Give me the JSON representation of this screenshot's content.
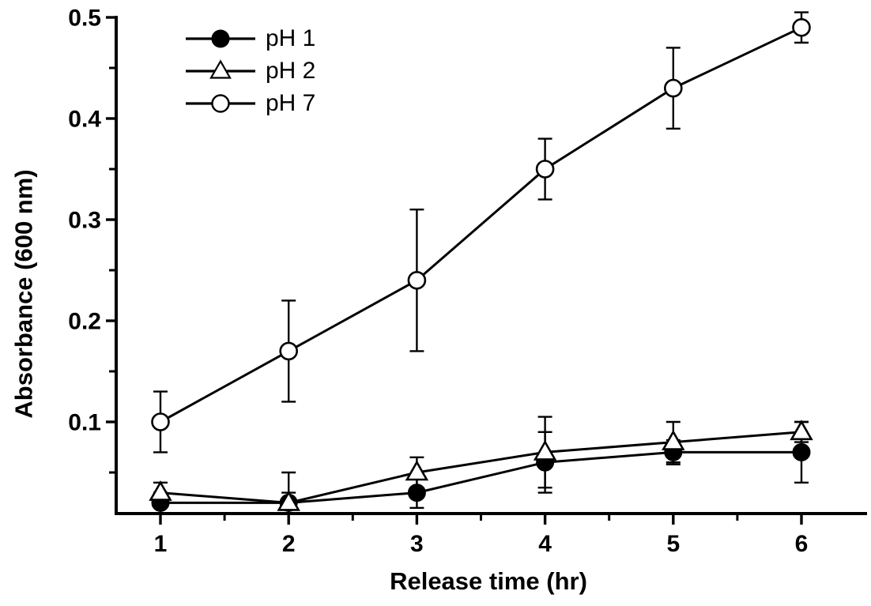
{
  "figure": {
    "background": "#ffffff",
    "accent": "#000000"
  },
  "chart_data": {
    "type": "line",
    "title": "",
    "xlabel": "Release time (hr)",
    "ylabel": "Absorbance (600 nm)",
    "x": [
      1,
      2,
      3,
      4,
      5,
      6
    ],
    "xlim": [
      0.65,
      6.55
    ],
    "ylim": [
      0.01,
      0.5
    ],
    "x_major_ticks": [
      1,
      2,
      3,
      4,
      5,
      6
    ],
    "x_minor_ticks": [
      1.5,
      2.5,
      3.5,
      4.5,
      5.5,
      6.5
    ],
    "y_major_ticks": [
      0.1,
      0.2,
      0.3,
      0.4,
      0.5
    ],
    "y_minor_ticks": [
      0.05,
      0.15,
      0.25,
      0.35,
      0.45
    ],
    "grid": false,
    "error_bars": true,
    "legend_position": "top-left-inside",
    "series": [
      {
        "name": "pH 1",
        "marker": "filled-circle",
        "color": "#000000",
        "values": [
          0.02,
          0.02,
          0.03,
          0.06,
          0.07,
          0.07
        ],
        "errors": [
          0.01,
          0.01,
          0.015,
          0.03,
          0.012,
          0.03
        ]
      },
      {
        "name": "pH 2",
        "marker": "open-triangle",
        "color": "#000000",
        "values": [
          0.03,
          0.02,
          0.05,
          0.07,
          0.08,
          0.09
        ],
        "errors": [
          0.01,
          0.03,
          0.015,
          0.035,
          0.02,
          0.01
        ]
      },
      {
        "name": "pH 7",
        "marker": "open-circle",
        "color": "#000000",
        "values": [
          0.1,
          0.17,
          0.24,
          0.35,
          0.43,
          0.49
        ],
        "errors": [
          0.03,
          0.05,
          0.07,
          0.03,
          0.04,
          0.015
        ]
      }
    ]
  }
}
